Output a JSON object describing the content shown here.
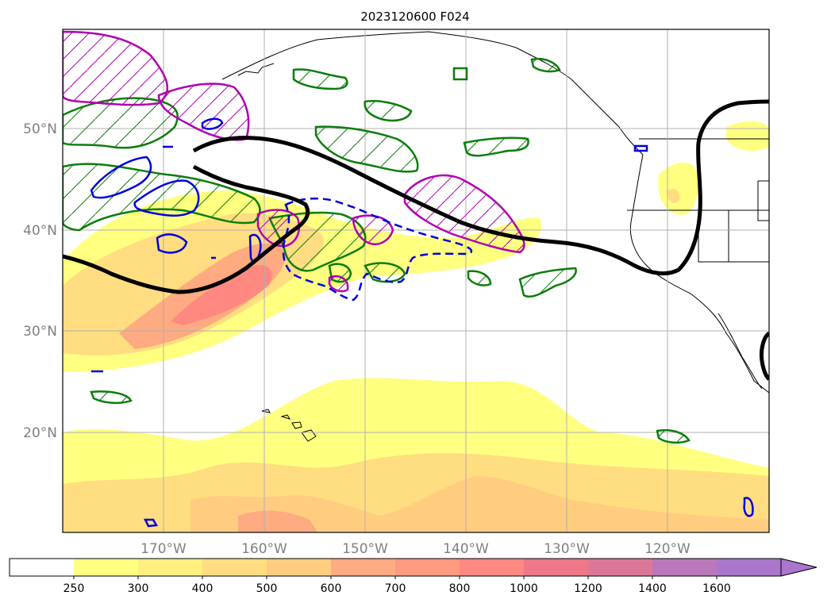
{
  "figure": {
    "title": "2023120600 F024"
  },
  "map": {
    "projection": "Plate Carree",
    "extent_description": "North Pacific, Hawaii to US West Coast",
    "lat_labels": [
      "50°N",
      "40°N",
      "30°N",
      "20°N"
    ],
    "lon_labels": [
      "170°W",
      "160°W",
      "150°W",
      "140°W",
      "130°W",
      "120°W"
    ],
    "gridlines": true,
    "layers": {
      "ivt_fill": "Shaded filled contours (yellow → red → purple)",
      "thick_contour": "Black thick contour",
      "green_hatched": "Green hatched contours",
      "magenta_hatched": "Magenta hatched contours",
      "blue_contours": "Blue contours (solid and dashed)"
    }
  },
  "colorbar": {
    "ticks": [
      "250",
      "300",
      "400",
      "500",
      "600",
      "700",
      "800",
      "1000",
      "1200",
      "1400",
      "1600"
    ],
    "colors": [
      "#ffffff",
      "#ffff80",
      "#ffee80",
      "#ffdd80",
      "#ffcc80",
      "#ffaa80",
      "#ff9980",
      "#ff8880",
      "#ee7788",
      "#dd7799",
      "#bb77bb",
      "#aa77cc"
    ],
    "extend": "max"
  }
}
